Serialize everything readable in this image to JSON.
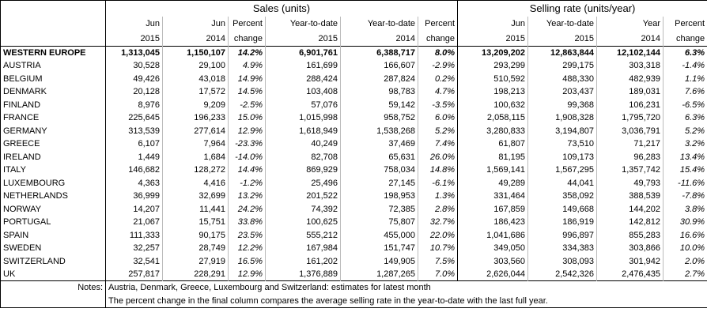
{
  "header": {
    "groups": [
      "Sales (units)",
      "Selling rate (units/year)"
    ],
    "columns": [
      {
        "top": "Jun",
        "bottom": "2015"
      },
      {
        "top": "Jun",
        "bottom": "2014"
      },
      {
        "top": "Percent",
        "bottom": "change"
      },
      {
        "top": "Year-to-date",
        "bottom": "2015"
      },
      {
        "top": "Year-to-date",
        "bottom": "2014"
      },
      {
        "top": "Percent",
        "bottom": "change"
      },
      {
        "top": "Jun",
        "bottom": "2015"
      },
      {
        "top": "Year-to-date",
        "bottom": "2015"
      },
      {
        "top": "Year",
        "bottom": "2014"
      },
      {
        "top": "Percent",
        "bottom": "change"
      }
    ]
  },
  "table": {
    "rows": [
      {
        "name": "WESTERN EUROPE",
        "cells": [
          "1,313,045",
          "1,150,107",
          "14.2%",
          "6,901,761",
          "6,388,717",
          "8.0%",
          "13,209,202",
          "12,863,844",
          "12,102,144",
          "6.3%"
        ]
      },
      {
        "name": "AUSTRIA",
        "cells": [
          "30,528",
          "29,100",
          "4.9%",
          "161,699",
          "166,607",
          "-2.9%",
          "293,299",
          "299,175",
          "303,318",
          "-1.4%"
        ]
      },
      {
        "name": "BELGIUM",
        "cells": [
          "49,426",
          "43,018",
          "14.9%",
          "288,424",
          "287,824",
          "0.2%",
          "510,592",
          "488,330",
          "482,939",
          "1.1%"
        ]
      },
      {
        "name": "DENMARK",
        "cells": [
          "20,128",
          "17,572",
          "14.5%",
          "103,408",
          "98,783",
          "4.7%",
          "198,213",
          "203,437",
          "189,031",
          "7.6%"
        ]
      },
      {
        "name": "FINLAND",
        "cells": [
          "8,976",
          "9,209",
          "-2.5%",
          "57,076",
          "59,142",
          "-3.5%",
          "100,632",
          "99,368",
          "106,231",
          "-6.5%"
        ]
      },
      {
        "name": "FRANCE",
        "cells": [
          "225,645",
          "196,233",
          "15.0%",
          "1,015,998",
          "958,752",
          "6.0%",
          "2,058,115",
          "1,908,328",
          "1,795,720",
          "6.3%"
        ]
      },
      {
        "name": "GERMANY",
        "cells": [
          "313,539",
          "277,614",
          "12.9%",
          "1,618,949",
          "1,538,268",
          "5.2%",
          "3,280,833",
          "3,194,807",
          "3,036,791",
          "5.2%"
        ]
      },
      {
        "name": "GREECE",
        "cells": [
          "6,107",
          "7,964",
          "-23.3%",
          "40,249",
          "37,469",
          "7.4%",
          "61,807",
          "73,510",
          "71,217",
          "3.2%"
        ]
      },
      {
        "name": "IRELAND",
        "cells": [
          "1,449",
          "1,684",
          "-14.0%",
          "82,708",
          "65,631",
          "26.0%",
          "81,195",
          "109,173",
          "96,283",
          "13.4%"
        ]
      },
      {
        "name": "ITALY",
        "cells": [
          "146,682",
          "128,272",
          "14.4%",
          "869,929",
          "758,034",
          "14.8%",
          "1,569,141",
          "1,567,295",
          "1,357,742",
          "15.4%"
        ]
      },
      {
        "name": "LUXEMBOURG",
        "cells": [
          "4,363",
          "4,416",
          "-1.2%",
          "25,496",
          "27,145",
          "-6.1%",
          "49,289",
          "44,041",
          "49,793",
          "-11.6%"
        ]
      },
      {
        "name": "NETHERLANDS",
        "cells": [
          "36,999",
          "32,699",
          "13.2%",
          "201,522",
          "198,953",
          "1.3%",
          "331,464",
          "358,092",
          "388,539",
          "-7.8%"
        ]
      },
      {
        "name": "NORWAY",
        "cells": [
          "14,207",
          "11,441",
          "24.2%",
          "74,392",
          "72,385",
          "2.8%",
          "167,859",
          "149,668",
          "144,202",
          "3.8%"
        ]
      },
      {
        "name": "PORTUGAL",
        "cells": [
          "21,067",
          "15,751",
          "33.8%",
          "100,625",
          "75,807",
          "32.7%",
          "186,423",
          "186,919",
          "142,812",
          "30.9%"
        ]
      },
      {
        "name": "SPAIN",
        "cells": [
          "111,333",
          "90,175",
          "23.5%",
          "555,212",
          "455,000",
          "22.0%",
          "1,041,686",
          "996,897",
          "855,283",
          "16.6%"
        ]
      },
      {
        "name": "SWEDEN",
        "cells": [
          "32,257",
          "28,749",
          "12.2%",
          "167,984",
          "151,747",
          "10.7%",
          "349,050",
          "334,383",
          "303,866",
          "10.0%"
        ]
      },
      {
        "name": "SWITZERLAND",
        "cells": [
          "32,541",
          "27,919",
          "16.5%",
          "161,202",
          "149,905",
          "7.5%",
          "303,560",
          "308,093",
          "301,942",
          "2.0%"
        ]
      },
      {
        "name": "UK",
        "cells": [
          "257,817",
          "228,291",
          "12.9%",
          "1,376,889",
          "1,287,265",
          "7.0%",
          "2,626,044",
          "2,542,326",
          "2,476,435",
          "2.7%"
        ]
      }
    ]
  },
  "notes": {
    "label": "Notes:",
    "lines": [
      "Austria, Denmark, Greece, Luxembourg and Switzerland: estimates for latest month",
      "The percent change in the final column compares the average selling rate in the year-to-date with the last full year."
    ]
  }
}
